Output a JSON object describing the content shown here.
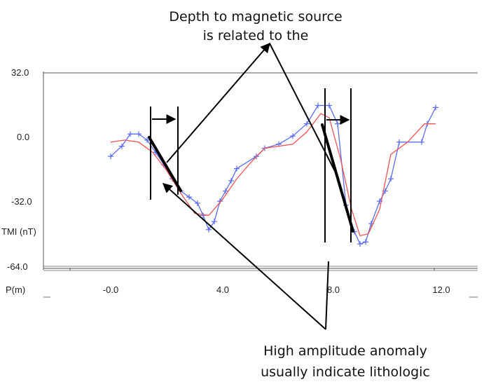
{
  "chart_data": {
    "type": "line",
    "title_lines": [
      "Depth to magnetic source",
      "is related to the"
    ],
    "note_lines": [
      "High amplitude anomaly",
      "usually indicate lithologic"
    ],
    "ylabel": "TMI (nT)",
    "xlabel": "P(m)",
    "xlim": [
      -1.5,
      13.5
    ],
    "ylim": [
      -64,
      32
    ],
    "x_ticks": [
      0,
      4,
      8,
      12
    ],
    "x_tick_labels": [
      "-0.0",
      "4.0",
      "8.0",
      "12.0"
    ],
    "y_ticks": [
      32,
      0,
      -32,
      -64
    ],
    "y_tick_labels": [
      "32.0",
      "0.0",
      "-32.0",
      "-64.0"
    ],
    "grid": false,
    "colors": {
      "observed": "#5a6cf0",
      "model": "#ee5555",
      "annotation": "#000000"
    },
    "series": [
      {
        "style": "markers-line",
        "x": [
          0.0,
          0.4,
          0.7,
          1.0,
          1.3,
          1.6,
          1.9,
          2.2,
          2.5,
          2.8,
          3.1,
          3.3,
          3.5,
          3.7,
          3.9,
          4.1,
          4.3,
          4.5,
          5.2,
          5.5,
          6.0,
          6.5,
          7.0,
          7.4,
          7.8,
          8.1,
          8.4,
          8.7,
          8.9,
          9.1,
          9.3,
          9.6,
          9.8,
          10.0,
          10.3,
          11.1,
          11.3,
          11.6
        ],
        "y": [
          -9,
          -4,
          2,
          2,
          -1,
          -7,
          -13,
          -20,
          -26,
          -29,
          -32,
          -38,
          -45,
          -41,
          -31,
          -26,
          -21,
          -15,
          -9,
          -5,
          -3,
          1,
          7,
          16,
          16,
          7,
          -33,
          -46,
          -52,
          -51,
          -42,
          -31,
          -26,
          -20,
          -2,
          -2,
          7,
          15
        ]
      },
      {
        "style": "line",
        "x": [
          0.0,
          0.5,
          1.0,
          1.5,
          2.0,
          2.5,
          3.0,
          3.5,
          4.0,
          4.5,
          5.0,
          5.5,
          6.0,
          6.5,
          7.0,
          7.5,
          7.8,
          8.2,
          8.6,
          8.9,
          9.2,
          9.6,
          10.0,
          10.6,
          11.2,
          11.6
        ],
        "y": [
          -2,
          -1,
          -2,
          -7,
          -16,
          -27,
          -37,
          -38,
          -30,
          -20,
          -12,
          -5,
          -4,
          -3,
          3,
          12,
          10,
          -10,
          -35,
          -48,
          -47,
          -35,
          -8,
          -2,
          7,
          7
        ]
      }
    ]
  }
}
